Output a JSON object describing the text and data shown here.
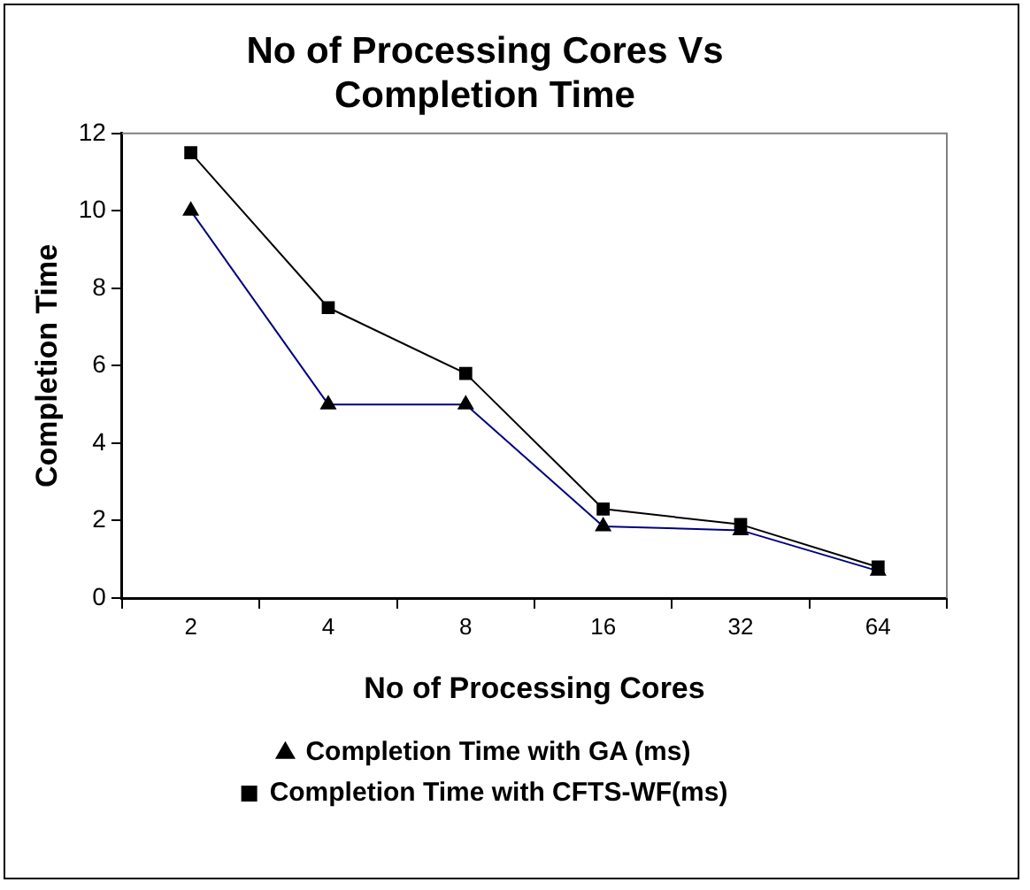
{
  "chart_data": {
    "type": "line",
    "title": "No of Processing Cores Vs Completion Time",
    "xlabel": "No of Processing Cores",
    "ylabel": "Completion Time",
    "categories": [
      "2",
      "4",
      "8",
      "16",
      "32",
      "64"
    ],
    "series": [
      {
        "name": "Completion Time with GA (ms)",
        "color": "#000080",
        "marker": "triangle",
        "values": [
          10,
          5,
          5,
          1.85,
          1.75,
          0.7
        ]
      },
      {
        "name": "Completion Time with CFTS-WF(ms)",
        "color": "#000000",
        "marker": "square",
        "values": [
          11.5,
          7.5,
          5.8,
          2.3,
          1.9,
          0.8
        ]
      }
    ],
    "ylim": [
      0,
      12
    ],
    "yticks": [
      0,
      2,
      4,
      6,
      8,
      10,
      12
    ],
    "grid": false,
    "legend": "bottom",
    "line_style": "solid"
  }
}
